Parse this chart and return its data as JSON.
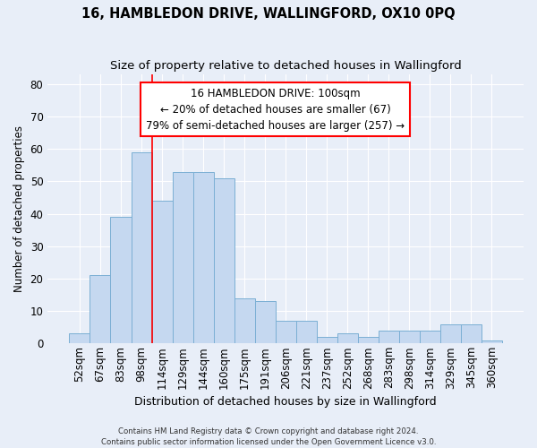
{
  "title1": "16, HAMBLEDON DRIVE, WALLINGFORD, OX10 0PQ",
  "title2": "Size of property relative to detached houses in Wallingford",
  "xlabel": "Distribution of detached houses by size in Wallingford",
  "ylabel": "Number of detached properties",
  "categories": [
    "52sqm",
    "67sqm",
    "83sqm",
    "98sqm",
    "114sqm",
    "129sqm",
    "144sqm",
    "160sqm",
    "175sqm",
    "191sqm",
    "206sqm",
    "221sqm",
    "237sqm",
    "252sqm",
    "268sqm",
    "283sqm",
    "298sqm",
    "314sqm",
    "329sqm",
    "345sqm",
    "360sqm"
  ],
  "values": [
    3,
    21,
    39,
    59,
    44,
    53,
    53,
    51,
    14,
    13,
    7,
    7,
    2,
    3,
    2,
    4,
    4,
    4,
    6,
    6,
    1
  ],
  "bar_color": "#c5d8f0",
  "bar_edge_color": "#7bafd4",
  "red_line_x": 3.5,
  "annotation_line1": "16 HAMBLEDON DRIVE: 100sqm",
  "annotation_line2": "← 20% of detached houses are smaller (67)",
  "annotation_line3": "79% of semi-detached houses are larger (257) →",
  "ylim": [
    0,
    83
  ],
  "yticks": [
    0,
    10,
    20,
    30,
    40,
    50,
    60,
    70,
    80
  ],
  "footer1": "Contains HM Land Registry data © Crown copyright and database right 2024.",
  "footer2": "Contains public sector information licensed under the Open Government Licence v3.0.",
  "bg_color": "#e8eef8",
  "plot_bg_color": "#e8eef8",
  "title1_fontsize": 10.5,
  "title2_fontsize": 9.5,
  "ylabel_fontsize": 8.5,
  "xlabel_fontsize": 9
}
